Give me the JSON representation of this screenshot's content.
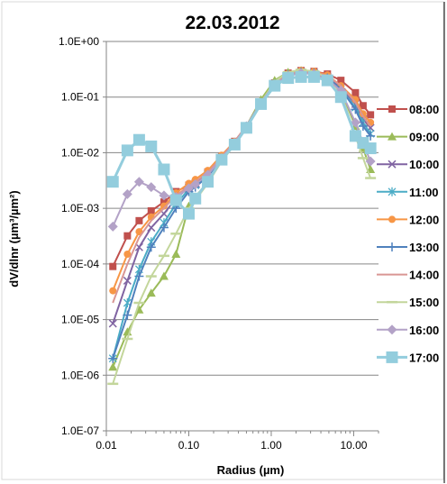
{
  "chart_data": {
    "type": "line",
    "title": "22.03.2012",
    "xlabel": "Radius (µm)",
    "ylabel": "dV/dlnr (µm³/µm²)",
    "x_scale": "log",
    "y_scale": "log",
    "xlim": [
      0.01,
      20
    ],
    "ylim": [
      1e-07,
      1
    ],
    "x_ticks": [
      {
        "value": 0.01,
        "label": "0.01"
      },
      {
        "value": 0.1,
        "label": "0.10"
      },
      {
        "value": 1,
        "label": "1.00"
      },
      {
        "value": 10,
        "label": "10.00"
      }
    ],
    "y_ticks": [
      {
        "value": 1,
        "label": "1.0E+00"
      },
      {
        "value": 0.1,
        "label": "1.0E-01"
      },
      {
        "value": 0.01,
        "label": "1.0E-02"
      },
      {
        "value": 0.001,
        "label": "1.0E-03"
      },
      {
        "value": 0.0001,
        "label": "1.0E-04"
      },
      {
        "value": 1e-05,
        "label": "1.0E-05"
      },
      {
        "value": 1e-06,
        "label": "1.0E-06"
      },
      {
        "value": 1e-07,
        "label": "1.0E-07"
      }
    ],
    "grid": "horizontal",
    "legend_position": "right",
    "x": [
      0.012,
      0.018,
      0.025,
      0.035,
      0.05,
      0.07,
      0.1,
      0.12,
      0.17,
      0.25,
      0.36,
      0.5,
      0.75,
      1.1,
      1.6,
      2.3,
      3.3,
      4.8,
      7.0,
      10.5,
      13.0,
      16.0
    ],
    "series": [
      {
        "name": "08:00",
        "color": "#c0504d",
        "marker": "square",
        "values": [
          9e-05,
          0.00032,
          0.0006,
          0.0009,
          0.0013,
          0.002,
          0.0026,
          0.0029,
          0.0045,
          0.0085,
          0.016,
          0.03,
          0.08,
          0.18,
          0.27,
          0.3,
          0.29,
          0.26,
          0.2,
          0.12,
          0.07,
          0.048
        ]
      },
      {
        "name": "09:00",
        "color": "#9bbb59",
        "marker": "triangle",
        "values": [
          1.4e-06,
          6e-06,
          1.5e-05,
          3e-05,
          6e-05,
          0.00015,
          0.0011,
          0.0016,
          0.003,
          0.0075,
          0.015,
          0.03,
          0.09,
          0.2,
          0.28,
          0.3,
          0.28,
          0.22,
          0.13,
          0.03,
          0.012,
          0.005
        ]
      },
      {
        "name": "10:00",
        "color": "#8064a2",
        "marker": "x",
        "values": [
          8.5e-06,
          5e-05,
          0.0002,
          0.00045,
          0.0008,
          0.0015,
          0.0024,
          0.0028,
          0.0042,
          0.008,
          0.015,
          0.03,
          0.08,
          0.17,
          0.25,
          0.28,
          0.27,
          0.23,
          0.15,
          0.075,
          0.04,
          0.028
        ]
      },
      {
        "name": "11:00",
        "color": "#4bacc6",
        "marker": "star",
        "values": [
          2e-06,
          2e-05,
          8e-05,
          0.00025,
          0.00055,
          0.0012,
          0.0022,
          0.0026,
          0.004,
          0.008,
          0.015,
          0.03,
          0.08,
          0.17,
          0.25,
          0.28,
          0.27,
          0.22,
          0.14,
          0.065,
          0.035,
          0.022
        ]
      },
      {
        "name": "12:00",
        "color": "#f79646",
        "marker": "circle",
        "values": [
          3.3e-05,
          0.00015,
          0.00038,
          0.0007,
          0.0011,
          0.0019,
          0.0028,
          0.0033,
          0.0048,
          0.009,
          0.016,
          0.03,
          0.08,
          0.17,
          0.26,
          0.3,
          0.29,
          0.25,
          0.16,
          0.09,
          0.05,
          0.035
        ]
      },
      {
        "name": "13:00",
        "color": "#4f81bd",
        "marker": "plus",
        "values": [
          2e-06,
          1.2e-05,
          6e-05,
          0.0002,
          0.00045,
          0.001,
          0.002,
          0.0024,
          0.0038,
          0.0075,
          0.015,
          0.029,
          0.078,
          0.17,
          0.25,
          0.28,
          0.27,
          0.22,
          0.14,
          0.06,
          0.03,
          0.02
        ]
      },
      {
        "name": "14:00",
        "color": "#d99694",
        "marker": "none",
        "values": [
          2e-05,
          0.0001,
          0.0003,
          0.0006,
          0.001,
          0.0017,
          0.0025,
          0.003,
          0.0044,
          0.0084,
          0.016,
          0.03,
          0.08,
          0.18,
          0.26,
          0.29,
          0.28,
          0.24,
          0.16,
          0.08,
          0.045,
          0.03
        ]
      },
      {
        "name": "15:00",
        "color": "#c3d69b",
        "marker": "dash",
        "values": [
          7e-07,
          4.5e-06,
          2e-05,
          6e-05,
          0.00014,
          0.00035,
          0.001,
          0.0014,
          0.0028,
          0.007,
          0.014,
          0.028,
          0.08,
          0.19,
          0.28,
          0.31,
          0.29,
          0.22,
          0.12,
          0.02,
          0.008,
          0.0035
        ]
      },
      {
        "name": "16:00",
        "color": "#b3a2c7",
        "marker": "diamond",
        "values": [
          0.00047,
          0.0018,
          0.003,
          0.0024,
          0.0017,
          0.0016,
          0.0023,
          0.0027,
          0.004,
          0.008,
          0.015,
          0.03,
          0.08,
          0.17,
          0.24,
          0.27,
          0.26,
          0.21,
          0.13,
          0.035,
          0.015,
          0.007
        ]
      },
      {
        "name": "17:00",
        "color": "#93cddd",
        "marker": "bigsquare",
        "values": [
          0.003,
          0.011,
          0.017,
          0.013,
          0.005,
          0.0014,
          0.0008,
          0.0015,
          0.003,
          0.0075,
          0.014,
          0.028,
          0.075,
          0.16,
          0.22,
          0.23,
          0.23,
          0.2,
          0.1,
          0.02,
          0.015,
          0.012
        ]
      }
    ]
  }
}
